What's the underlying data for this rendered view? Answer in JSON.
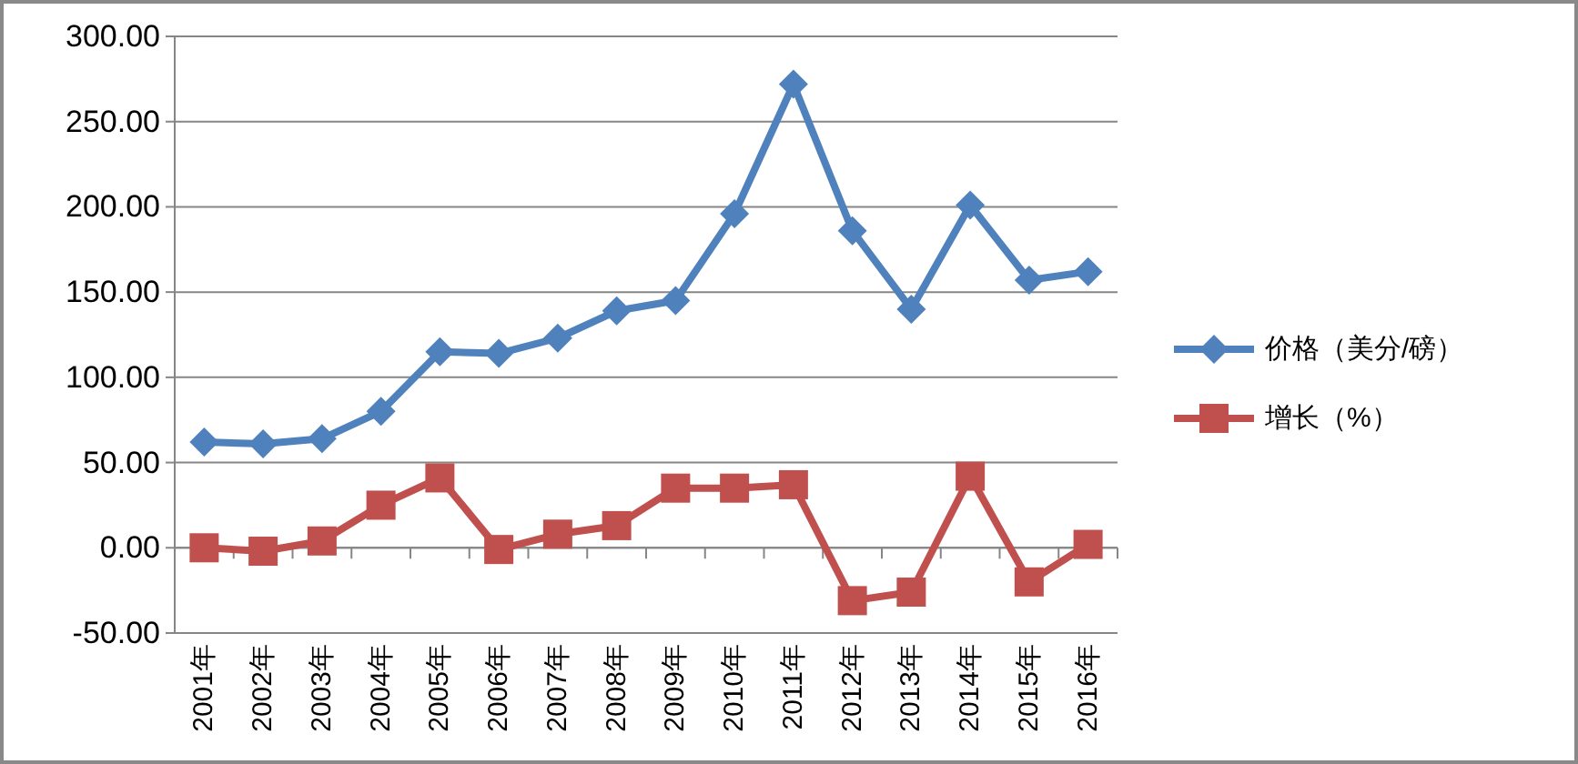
{
  "chart_data": {
    "type": "line",
    "categories": [
      "2001年",
      "2002年",
      "2003年",
      "2004年",
      "2005年",
      "2006年",
      "2007年",
      "2008年",
      "2009年",
      "2010年",
      "2011年",
      "2012年",
      "2013年",
      "2014年",
      "2015年",
      "2016年"
    ],
    "series": [
      {
        "name": "价格（美分/磅）",
        "color": "#4f81bd",
        "marker": "diamond",
        "values": [
          62,
          61,
          64,
          80,
          115,
          114,
          123,
          139,
          145,
          196,
          272,
          186,
          140,
          201,
          157,
          162
        ]
      },
      {
        "name": "增长（%）",
        "color": "#c0504d",
        "marker": "square",
        "values": [
          0,
          -2,
          4,
          25,
          41,
          -1,
          8,
          13,
          35,
          35,
          37,
          -31,
          -26,
          42,
          -20,
          2
        ]
      }
    ],
    "ylim": [
      -50,
      300
    ],
    "yticks": [
      {
        "value": -50,
        "label": "-50.00"
      },
      {
        "value": 0,
        "label": "0.00"
      },
      {
        "value": 50,
        "label": "50.00"
      },
      {
        "value": 100,
        "label": "100.00"
      },
      {
        "value": 150,
        "label": "150.00"
      },
      {
        "value": 200,
        "label": "200.00"
      },
      {
        "value": 250,
        "label": "250.00"
      },
      {
        "value": 300,
        "label": "300.00"
      }
    ],
    "grid": "y",
    "legend": "right"
  }
}
